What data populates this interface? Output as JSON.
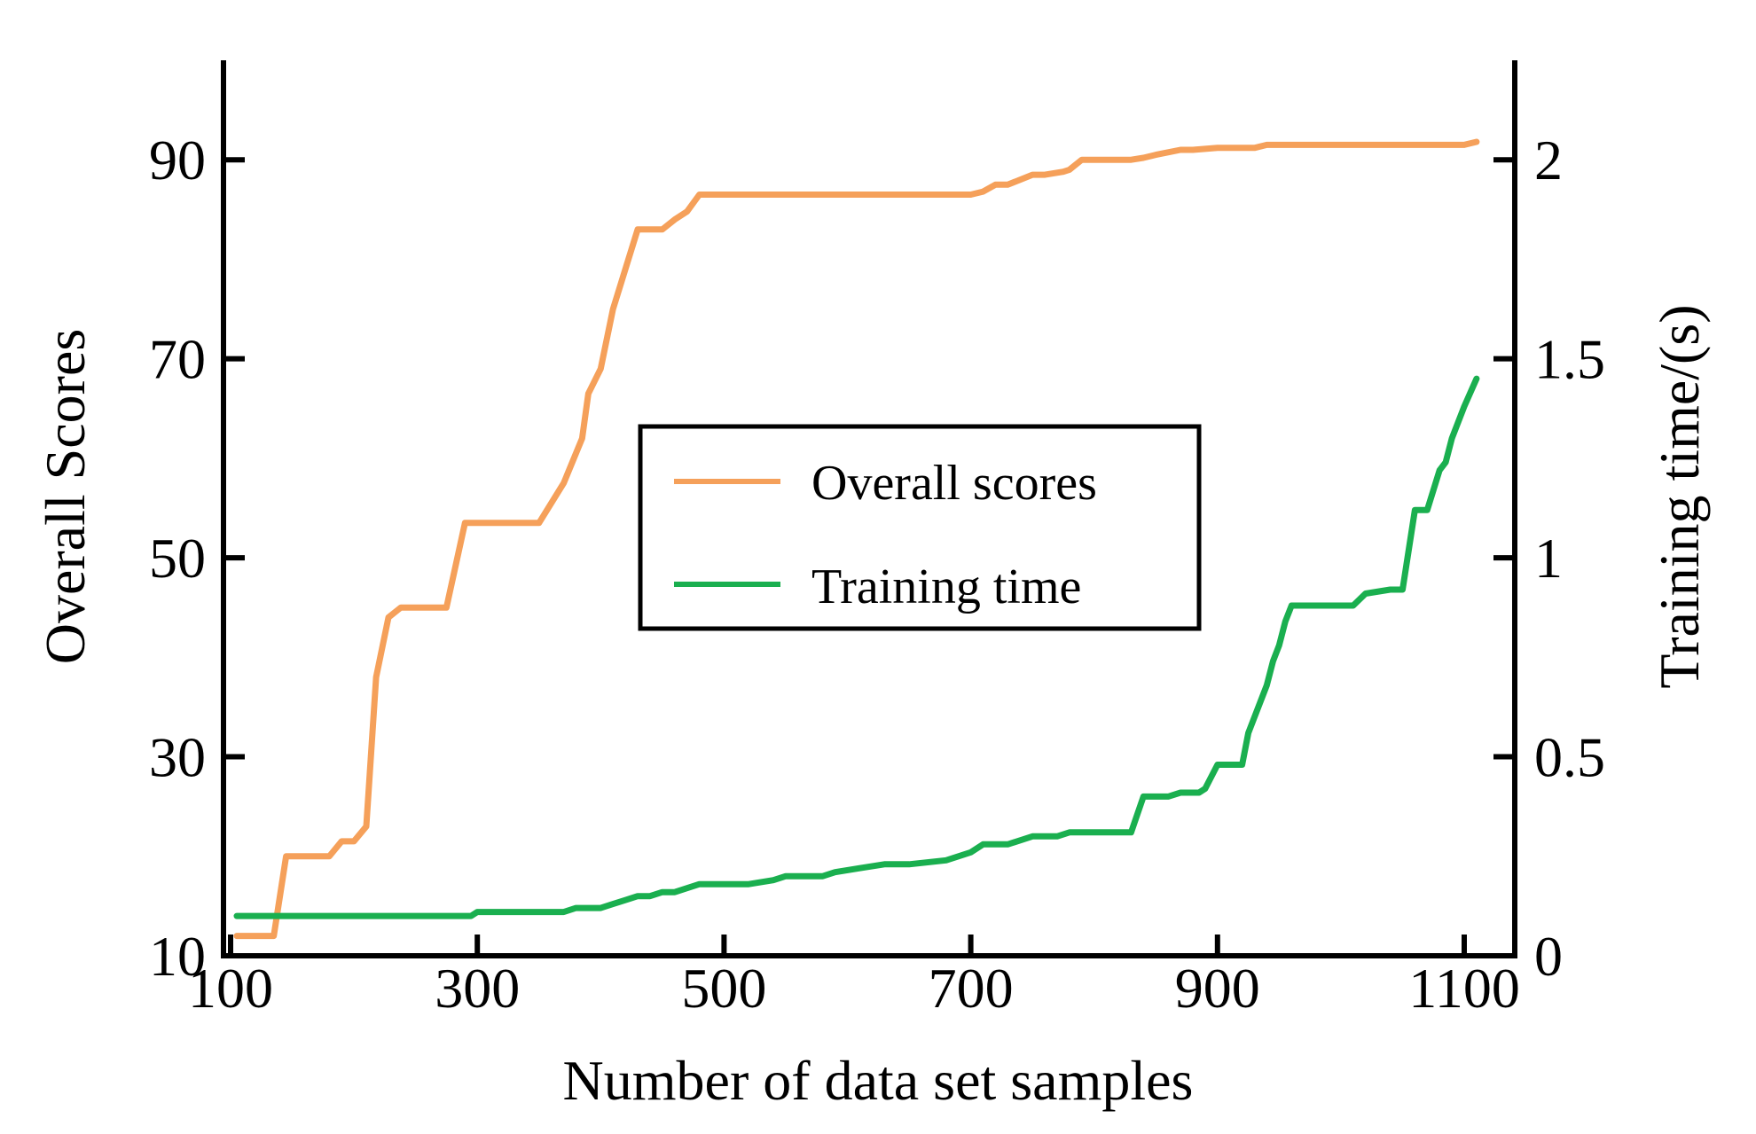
{
  "chart_data": {
    "type": "line",
    "title": "",
    "xlabel": "Number of data set samples",
    "ylabel_left": "Overall Scores",
    "ylabel_right": "Training time/(s)",
    "xlim": [
      100,
      1100
    ],
    "ylim_left": [
      10,
      100
    ],
    "ylim_right": [
      0,
      2.25
    ],
    "x_ticks": [
      100,
      300,
      500,
      700,
      900,
      1100
    ],
    "x_tick_labels": [
      "100",
      "300",
      "500",
      "700",
      "900",
      "1100"
    ],
    "y_left_ticks": [
      10,
      30,
      50,
      70,
      90
    ],
    "y_left_tick_labels": [
      "10",
      "30",
      "50",
      "70",
      "90"
    ],
    "y_right_ticks": [
      0,
      0.5,
      1,
      1.5,
      2
    ],
    "y_right_tick_labels": [
      "0",
      "0.5",
      "1",
      "1.5",
      "2"
    ],
    "grid": false,
    "legend_position": "center",
    "series": [
      {
        "name": "Overall scores",
        "axis": "left",
        "color": "#f5a05a",
        "x": [
          105,
          135,
          145,
          180,
          190,
          200,
          210,
          218,
          228,
          238,
          248,
          275,
          290,
          300,
          340,
          350,
          370,
          385,
          390,
          400,
          410,
          420,
          430,
          440,
          450,
          460,
          470,
          480,
          500,
          550,
          600,
          650,
          700,
          710,
          720,
          730,
          740,
          750,
          760,
          775,
          780,
          790,
          800,
          830,
          840,
          850,
          870,
          880,
          900,
          930,
          940,
          1000,
          1050,
          1100,
          1110
        ],
        "y": [
          12,
          12,
          20,
          20,
          21.5,
          21.5,
          23,
          38,
          44,
          45,
          45,
          45,
          53.5,
          53.5,
          53.5,
          53.5,
          57.5,
          62,
          66.5,
          69,
          75,
          79,
          83,
          83,
          83,
          84,
          84.8,
          86.5,
          86.5,
          86.5,
          86.5,
          86.5,
          86.5,
          86.8,
          87.5,
          87.5,
          88,
          88.5,
          88.5,
          88.8,
          89,
          90,
          90,
          90,
          90.2,
          90.5,
          91,
          91,
          91.2,
          91.2,
          91.5,
          91.5,
          91.5,
          91.5,
          91.8
        ]
      },
      {
        "name": "Training time",
        "axis": "right",
        "color": "#1aaf4f",
        "x": [
          105,
          200,
          295,
          300,
          360,
          370,
          380,
          400,
          410,
          420,
          430,
          440,
          450,
          460,
          470,
          480,
          520,
          540,
          550,
          580,
          590,
          610,
          630,
          650,
          680,
          690,
          700,
          710,
          730,
          750,
          770,
          780,
          800,
          830,
          840,
          860,
          870,
          885,
          890,
          900,
          920,
          925,
          930,
          940,
          945,
          950,
          955,
          960,
          1010,
          1020,
          1040,
          1050,
          1060,
          1070,
          1080,
          1085,
          1090,
          1100,
          1110
        ],
        "y": [
          0.1,
          0.1,
          0.1,
          0.11,
          0.11,
          0.11,
          0.12,
          0.12,
          0.13,
          0.14,
          0.15,
          0.15,
          0.16,
          0.16,
          0.17,
          0.18,
          0.18,
          0.19,
          0.2,
          0.2,
          0.21,
          0.22,
          0.23,
          0.23,
          0.24,
          0.25,
          0.26,
          0.28,
          0.28,
          0.3,
          0.3,
          0.31,
          0.31,
          0.31,
          0.4,
          0.4,
          0.41,
          0.41,
          0.42,
          0.48,
          0.48,
          0.56,
          0.6,
          0.68,
          0.74,
          0.78,
          0.84,
          0.88,
          0.88,
          0.91,
          0.92,
          0.92,
          1.12,
          1.12,
          1.22,
          1.24,
          1.3,
          1.38,
          1.45
        ]
      }
    ]
  }
}
